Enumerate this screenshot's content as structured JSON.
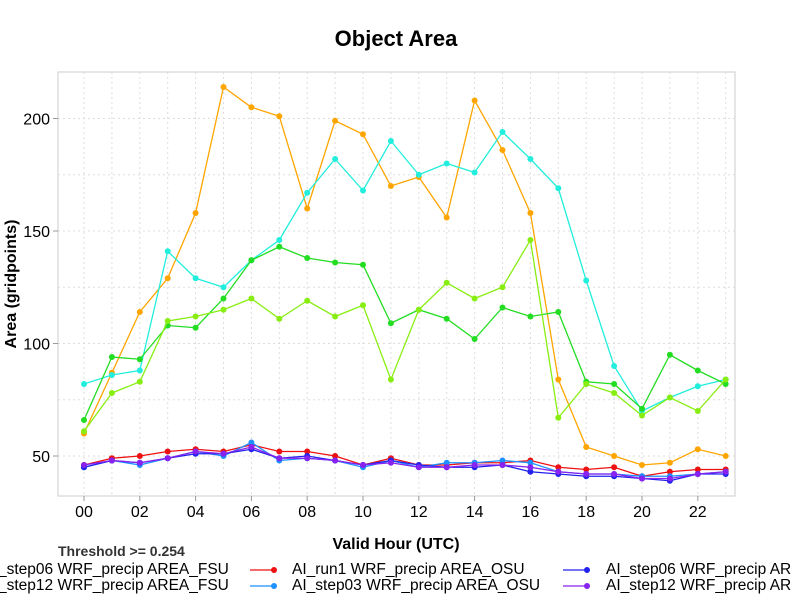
{
  "chart_data": {
    "type": "line",
    "title": "Object Area",
    "xlabel": "Valid Hour (UTC)",
    "ylabel": "Area (gridpoints)",
    "subtitle": "Threshold >= 0.254",
    "x": [
      0,
      1,
      2,
      3,
      4,
      5,
      6,
      7,
      8,
      9,
      10,
      11,
      12,
      13,
      14,
      15,
      16,
      17,
      18,
      19,
      20,
      21,
      22,
      23
    ],
    "xtick_labels": [
      "00",
      "02",
      "04",
      "06",
      "08",
      "10",
      "12",
      "14",
      "16",
      "18",
      "20",
      "22"
    ],
    "ytick_labels": [
      "50",
      "100",
      "150",
      "200"
    ],
    "ylim": [
      30,
      222
    ],
    "xlim": [
      -0.9,
      23.9
    ],
    "grid": true,
    "series": [
      {
        "name": "orange",
        "color": "#FFA500",
        "values": [
          60,
          87,
          114,
          129,
          158,
          214,
          205,
          201,
          160,
          199,
          193,
          170,
          174,
          156,
          208,
          186,
          158,
          84,
          54,
          50,
          46,
          47,
          53,
          50
        ]
      },
      {
        "name": "cyan",
        "color": "#22EEDD",
        "values": [
          82,
          86,
          88,
          141,
          129,
          125,
          137,
          146,
          167,
          182,
          168,
          190,
          175,
          180,
          176,
          194,
          182,
          169,
          128,
          90,
          70,
          76,
          81,
          84
        ]
      },
      {
        "name": "green",
        "color": "#22DD22",
        "values": [
          66,
          94,
          93,
          108,
          107,
          120,
          137,
          143,
          138,
          136,
          135,
          109,
          115,
          111,
          102,
          116,
          112,
          114,
          83,
          82,
          71,
          95,
          88,
          82
        ]
      },
      {
        "name": "lime",
        "color": "#88EE11",
        "values": [
          61,
          78,
          83,
          110,
          112,
          115,
          120,
          111,
          119,
          112,
          117,
          84,
          115,
          127,
          120,
          125,
          146,
          67,
          82,
          78,
          68,
          76,
          70,
          84
        ]
      },
      {
        "name": "AI_run1 WRF_precip AREA_OSU",
        "color": "#EE1111",
        "values": [
          46,
          49,
          50,
          52,
          53,
          52,
          55,
          52,
          52,
          50,
          46,
          49,
          46,
          46,
          47,
          47,
          48,
          45,
          44,
          45,
          41,
          43,
          44,
          44
        ]
      },
      {
        "name": "AI_step03 WRF_precip AREA_OSU",
        "color": "#1E90FF",
        "values": [
          45,
          48,
          46,
          49,
          52,
          50,
          56,
          48,
          49,
          48,
          45,
          48,
          45,
          47,
          47,
          48,
          47,
          43,
          42,
          42,
          41,
          41,
          42,
          43
        ]
      },
      {
        "name": "AI_step06 WRF_precip AR",
        "color": "#2222EE",
        "values": [
          45,
          48,
          47,
          49,
          51,
          51,
          53,
          49,
          50,
          48,
          46,
          48,
          46,
          45,
          45,
          46,
          43,
          42,
          41,
          41,
          40,
          39,
          42,
          42
        ]
      },
      {
        "name": "AI_step12 WRF_precip AR",
        "color": "#8822EE",
        "values": [
          46,
          48,
          47,
          49,
          52,
          51,
          54,
          49,
          49,
          48,
          46,
          47,
          45,
          45,
          46,
          46,
          45,
          43,
          42,
          42,
          40,
          40,
          42,
          43
        ]
      }
    ],
    "legend": [
      {
        "label": "_step06 WRF_precip AREA_FSU"
      },
      {
        "label": "_step12 WRF_precip AREA_FSU"
      },
      {
        "label": "AI_run1 WRF_precip AREA_OSU",
        "color": "#EE1111"
      },
      {
        "label": "AI_step03 WRF_precip AREA_OSU",
        "color": "#1E90FF"
      },
      {
        "label": "AI_step06 WRF_precip AR",
        "color": "#2222EE"
      },
      {
        "label": "AI_step12 WRF_precip AR",
        "color": "#8822EE"
      }
    ],
    "legend_placement": "bottom"
  }
}
